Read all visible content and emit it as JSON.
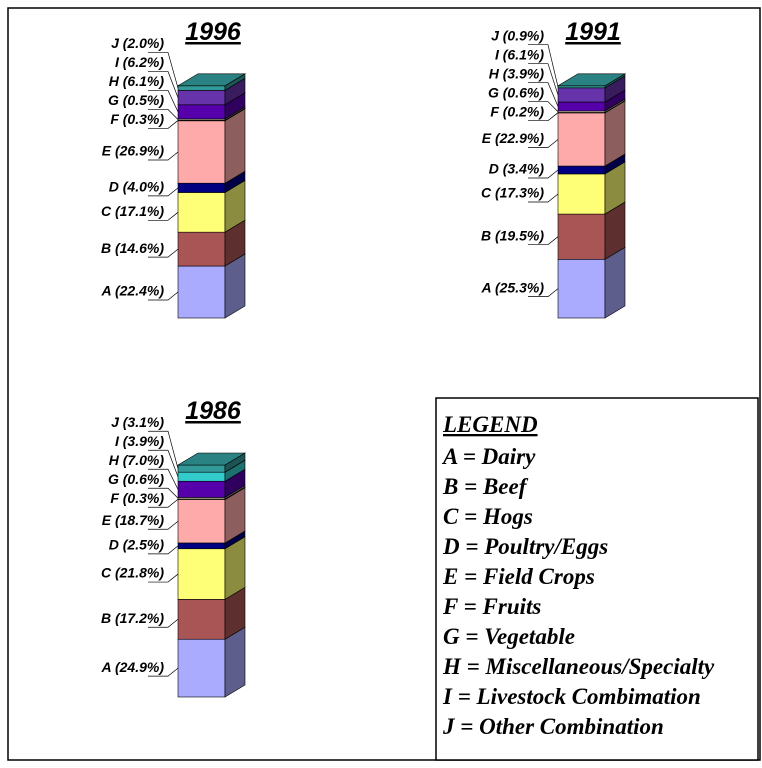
{
  "chart_data": [
    {
      "type": "stacked-bar",
      "title": "1996",
      "values": [
        22.4,
        14.6,
        17.1,
        4.0,
        26.9,
        0.3,
        0.5,
        6.1,
        6.2,
        2.0
      ],
      "value_labels": [
        "A (22.4%)",
        "B (14.6%)",
        "C (17.1%)",
        "D (4.0%)",
        "E (26.9%)",
        "F (0.3%)",
        "G (0.5%)",
        "H (6.1%)",
        "I (6.2%)",
        "J (2.0%)"
      ],
      "colors": [
        "#aaaaff",
        "#aa5555",
        "#ffff77",
        "#000080",
        "#ffaaaa",
        "#ffffaa",
        "#ffffcc",
        "#5500aa",
        "#6633aa",
        "#339999"
      ]
    },
    {
      "type": "stacked-bar",
      "title": "1991",
      "values": [
        25.3,
        19.5,
        17.3,
        3.4,
        22.9,
        0.2,
        0.6,
        3.9,
        6.1,
        0.9
      ],
      "value_labels": [
        "A (25.3%)",
        "B (19.5%)",
        "C (17.3%)",
        "D (3.4%)",
        "E (22.9%)",
        "F (0.2%)",
        "G (0.6%)",
        "H (3.9%)",
        "I (6.1%)",
        "J (0.9%)"
      ],
      "colors": [
        "#aaaaff",
        "#aa5555",
        "#ffff77",
        "#000080",
        "#ffaaaa",
        "#ffffaa",
        "#ffffcc",
        "#5500aa",
        "#6633aa",
        "#339999"
      ]
    },
    {
      "type": "stacked-bar",
      "title": "1986",
      "values": [
        24.9,
        17.2,
        21.8,
        2.5,
        18.7,
        0.3,
        0.6,
        7.0,
        3.9,
        3.1
      ],
      "value_labels": [
        "A (24.9%)",
        "B (17.2%)",
        "C (21.8%)",
        "D (2.5%)",
        "E (18.7%)",
        "F (0.3%)",
        "G (0.6%)",
        "H (7.0%)",
        "I (3.9%)",
        "J (3.1%)"
      ],
      "colors": [
        "#aaaaff",
        "#aa5555",
        "#ffff77",
        "#000080",
        "#ffaaaa",
        "#ffffaa",
        "#ffffcc",
        "#5500aa",
        "#33cccc",
        "#339999"
      ]
    }
  ],
  "legend": {
    "title": "LEGEND",
    "entries": [
      "A = Dairy",
      "B = Beef",
      "C = Hogs",
      "D = Poultry/Eggs",
      "E = Field Crops",
      "F = Fruits",
      "G = Vegetable",
      "H = Miscellaneous/Specialty",
      "I = Livestock Combimation",
      "J = Other Combination"
    ]
  }
}
